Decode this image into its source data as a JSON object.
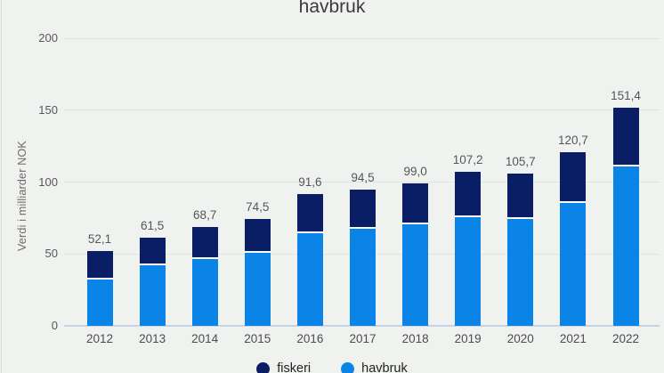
{
  "title": "havbruk",
  "y_axis": {
    "label": "Verdi i milliarder NOK",
    "tick_labels": [
      "0",
      "50",
      "100",
      "150",
      "200"
    ],
    "tick_values": [
      0,
      50,
      100,
      150,
      200
    ]
  },
  "x_axis": {
    "categories": [
      "2012",
      "2013",
      "2014",
      "2015",
      "2016",
      "2017",
      "2018",
      "2019",
      "2020",
      "2021",
      "2022"
    ]
  },
  "legend": {
    "items": [
      {
        "label": "fiskeri",
        "color": "#0a1e66"
      },
      {
        "label": "havbruk",
        "color": "#0b84e8"
      }
    ]
  },
  "chart_data": {
    "type": "bar",
    "stacked": true,
    "title": "havbruk",
    "ylabel": "Verdi i milliarder NOK",
    "ylim": [
      0,
      200
    ],
    "grid": true,
    "legend_position": "bottom",
    "categories": [
      "2012",
      "2013",
      "2014",
      "2015",
      "2016",
      "2017",
      "2018",
      "2019",
      "2020",
      "2021",
      "2022"
    ],
    "series": [
      {
        "name": "havbruk",
        "color": "#0b84e8",
        "stack_position": "bottom",
        "values": [
          32.0,
          41.8,
          46.5,
          51.0,
          64.5,
          67.5,
          70.5,
          75.8,
          74.3,
          85.2,
          111.0
        ]
      },
      {
        "name": "fiskeri",
        "color": "#0a1e66",
        "stack_position": "top",
        "values": [
          20.1,
          19.7,
          22.2,
          23.5,
          27.1,
          27.0,
          28.5,
          31.4,
          31.4,
          35.5,
          40.4
        ]
      }
    ],
    "totals": [
      52.1,
      61.5,
      68.7,
      74.5,
      91.6,
      94.5,
      99.0,
      107.2,
      105.7,
      120.7,
      151.4
    ],
    "total_labels": [
      "52,1",
      "61,5",
      "68,7",
      "74,5",
      "91,6",
      "94,5",
      "99,0",
      "107,2",
      "105,7",
      "120,7",
      "151,4"
    ]
  },
  "colors": {
    "background": "#f0f2ef",
    "bar_havbruk": "#0b84e8",
    "bar_fiskeri": "#0a1e66",
    "gridline": "#e2e4e1",
    "axis_line": "#c4d3e6",
    "segment_separator": "#ffffff",
    "title_text": "#3b3b3b",
    "tick_text": "#58585a",
    "value_label_text": "#56565a"
  }
}
